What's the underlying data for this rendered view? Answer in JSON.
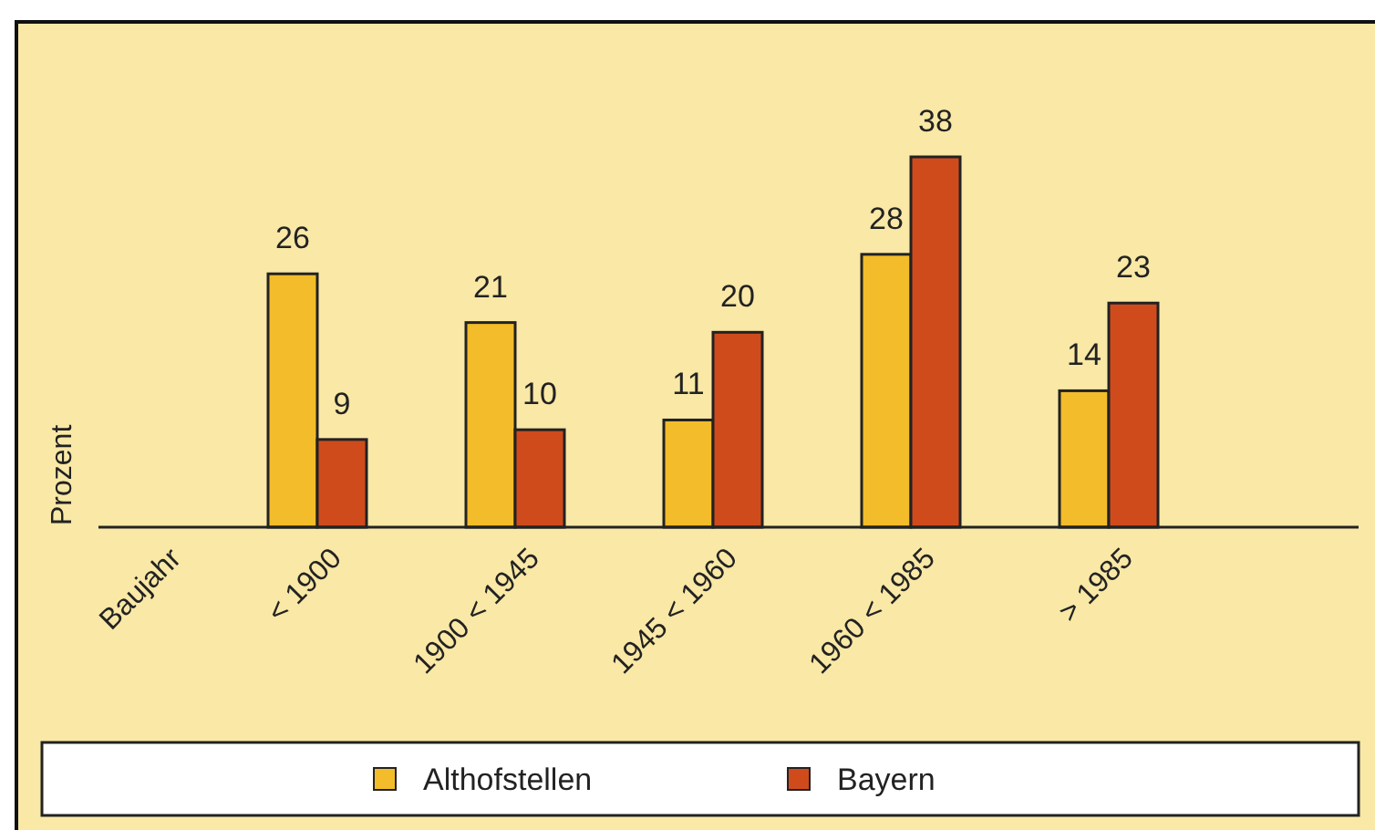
{
  "chart_data": {
    "type": "bar",
    "xlabel": "Baujahr",
    "ylabel": "Prozent",
    "categories": [
      "< 1900",
      "1900 < 1945",
      "1945 < 1960",
      "1960 < 1985",
      "> 1985"
    ],
    "series": [
      {
        "name": "Althofstellen",
        "color": "#f3bc2a",
        "values": [
          26,
          21,
          11,
          28,
          14
        ]
      },
      {
        "name": "Bayern",
        "color": "#d04b1c",
        "values": [
          9,
          10,
          20,
          38,
          23
        ]
      }
    ],
    "data_labels": true,
    "legend": "bottom"
  }
}
